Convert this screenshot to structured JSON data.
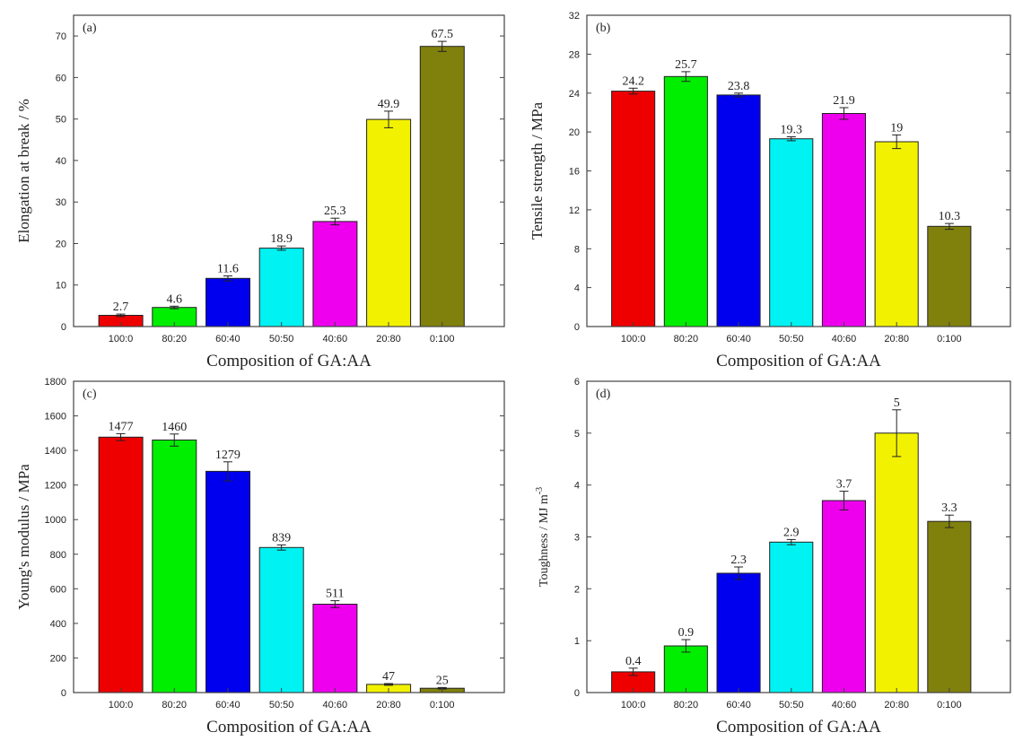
{
  "chart_data": [
    {
      "id": "a",
      "type": "bar",
      "panel_label": "(a)",
      "categories": [
        "100:0",
        "80:20",
        "60:40",
        "50:50",
        "40:60",
        "20:80",
        "0:100"
      ],
      "values": [
        2.7,
        4.6,
        11.6,
        18.9,
        25.3,
        49.9,
        67.5
      ],
      "value_labels": [
        "2.7",
        "4.6",
        "11.6",
        "18.9",
        "25.3",
        "49.9",
        "67.5"
      ],
      "errors": [
        0.3,
        0.3,
        0.6,
        0.5,
        0.8,
        2.0,
        1.2
      ],
      "xlabel": "Composition of GA:AA",
      "ylabel": "Elongation at break / %",
      "ylim": [
        0,
        75
      ],
      "yticks": [
        0,
        10,
        20,
        30,
        40,
        50,
        60,
        70
      ],
      "ytick_labels": [
        "0",
        "10",
        "20",
        "30",
        "40",
        "50",
        "60",
        "70"
      ]
    },
    {
      "id": "b",
      "type": "bar",
      "panel_label": "(b)",
      "categories": [
        "100:0",
        "80:20",
        "60:40",
        "50:50",
        "40:60",
        "20:80",
        "0:100"
      ],
      "values": [
        24.2,
        25.7,
        23.8,
        19.3,
        21.9,
        19,
        10.3
      ],
      "value_labels": [
        "24.2",
        "25.7",
        "23.8",
        "19.3",
        "21.9",
        "19",
        "10.3"
      ],
      "errors": [
        0.3,
        0.5,
        0.2,
        0.2,
        0.6,
        0.7,
        0.3
      ],
      "xlabel": "Composition of GA:AA",
      "ylabel": "Tensile strength / MPa",
      "ylim": [
        0,
        32
      ],
      "yticks": [
        0,
        4,
        8,
        12,
        16,
        20,
        24,
        28,
        32
      ],
      "ytick_labels": [
        "0",
        "4",
        "8",
        "12",
        "16",
        "20",
        "24",
        "28",
        "32"
      ]
    },
    {
      "id": "c",
      "type": "bar",
      "panel_label": "(c)",
      "categories": [
        "100:0",
        "80:20",
        "60:40",
        "50:50",
        "40:60",
        "20:80",
        "0:100"
      ],
      "values": [
        1477,
        1460,
        1279,
        839,
        511,
        47,
        25
      ],
      "value_labels": [
        "1477",
        "1460",
        "1279",
        "839",
        "511",
        "47",
        "25"
      ],
      "errors": [
        20,
        35,
        55,
        15,
        20,
        5,
        4
      ],
      "xlabel": "Composition of GA:AA",
      "ylabel": "Young's modulus / MPa",
      "ylim": [
        0,
        1800
      ],
      "yticks": [
        0,
        200,
        400,
        600,
        800,
        1000,
        1200,
        1400,
        1600,
        1800
      ],
      "ytick_labels": [
        "0",
        "200",
        "400",
        "600",
        "800",
        "1000",
        "1200",
        "1400",
        "1600",
        "1800"
      ]
    },
    {
      "id": "d",
      "type": "bar",
      "panel_label": "(d)",
      "categories": [
        "100:0",
        "80:20",
        "60:40",
        "50:50",
        "40:60",
        "20:80",
        "0:100"
      ],
      "values": [
        0.4,
        0.9,
        2.3,
        2.9,
        3.7,
        5,
        3.3
      ],
      "value_labels": [
        "0.4",
        "0.9",
        "2.3",
        "2.9",
        "3.7",
        "5",
        "3.3"
      ],
      "errors": [
        0.07,
        0.12,
        0.12,
        0.05,
        0.18,
        0.45,
        0.12
      ],
      "xlabel": "Composition of GA:AA",
      "ylabel_main": "Toughness / MJ m",
      "ylabel_sup": "-3",
      "ylim": [
        0,
        6
      ],
      "yticks": [
        0,
        1,
        2,
        3,
        4,
        5,
        6
      ],
      "ytick_labels": [
        "0",
        "1",
        "2",
        "3",
        "4",
        "5",
        "6"
      ]
    }
  ],
  "colors": {
    "bars": [
      "#ee0000",
      "#00ee00",
      "#0000ee",
      "#00f2f2",
      "#ee00ee",
      "#f2f200",
      "#80800d"
    ],
    "axis": "#444444",
    "bar_stroke": "#222222"
  }
}
